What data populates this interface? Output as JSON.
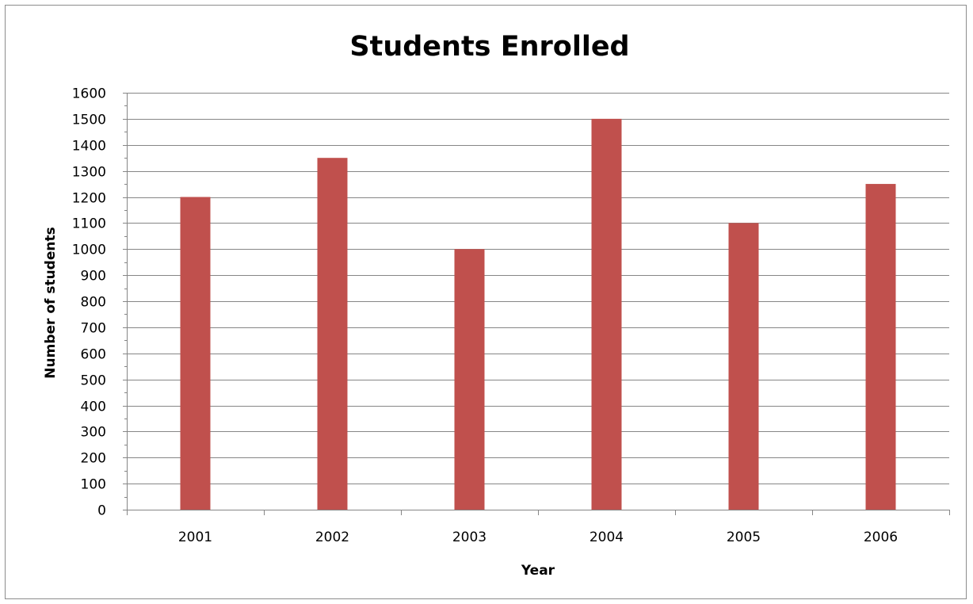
{
  "chart_data": {
    "type": "bar",
    "title": "Students Enrolled",
    "xlabel": "Year",
    "ylabel": "Number of students",
    "categories": [
      "2001",
      "2002",
      "2003",
      "2004",
      "2005",
      "2006"
    ],
    "values": [
      1200,
      1350,
      1000,
      1500,
      1100,
      1250
    ],
    "ylim": [
      0,
      1600
    ],
    "ytick_step": 100,
    "yticks": [
      "0",
      "100",
      "200",
      "300",
      "400",
      "500",
      "600",
      "700",
      "800",
      "900",
      "1000",
      "1100",
      "1200",
      "1300",
      "1400",
      "1500",
      "1600"
    ],
    "grid": true,
    "legend": "none",
    "colors": {
      "bar": "#c0504d",
      "grid": "#868686"
    }
  }
}
